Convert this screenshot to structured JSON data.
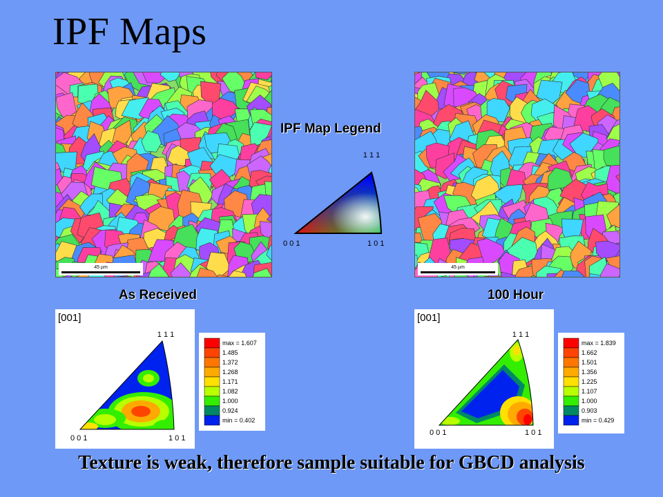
{
  "page": {
    "title": "IPF Maps",
    "caption": "Texture is weak, therefore sample suitable for GBCD analysis"
  },
  "maps": [
    {
      "label": "As Received",
      "scale": "45 µm"
    },
    {
      "label": "100 Hour",
      "scale": "45 µm"
    }
  ],
  "legend": {
    "title": "IPF Map Legend",
    "corner_top": "1 1 1",
    "corner_left": "0 0 1",
    "corner_right": "1 0 1"
  },
  "pole_figures": [
    {
      "header": "[001]",
      "corner_top": "1 1 1",
      "corner_left": "0 0 1",
      "corner_right": "1 0 1",
      "colorbar": {
        "labels": [
          "max = 1.607",
          "1.485",
          "1.372",
          "1.268",
          "1.171",
          "1.082",
          "1.000",
          "0.924",
          "min = 0.402"
        ]
      }
    },
    {
      "header": "[001]",
      "corner_top": "1 1 1",
      "corner_left": "0 0 1",
      "corner_right": "1 0 1",
      "colorbar": {
        "labels": [
          "max = 1.839",
          "1.662",
          "1.501",
          "1.356",
          "1.225",
          "1.107",
          "1.000",
          "0.903",
          "min = 0.429"
        ]
      }
    }
  ],
  "colorbar_colors": [
    "#ff0000",
    "#ff4400",
    "#ff7700",
    "#ffaa00",
    "#ffe000",
    "#b8ff00",
    "#33ee00",
    "#008866",
    "#0022ee"
  ]
}
